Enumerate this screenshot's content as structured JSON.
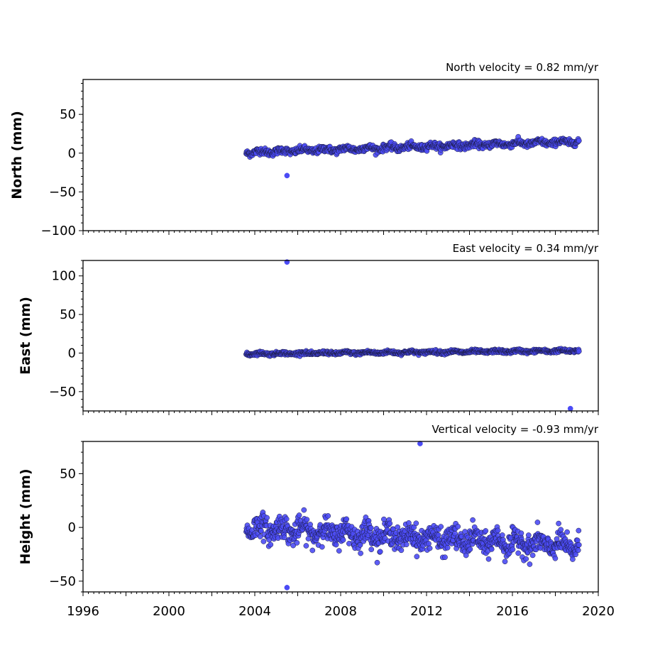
{
  "chart_data": [
    {
      "type": "scatter",
      "title": "North velocity = 0.82 mm/yr",
      "ylabel": "North (mm)",
      "xlim": [
        1996,
        2020
      ],
      "ylim": [
        -100,
        95
      ],
      "yticks": [
        "50",
        "0",
        "−50",
        "−100"
      ],
      "ytick_values": [
        50,
        0,
        -50,
        -100
      ],
      "series": [
        {
          "color": "#4b4bf5",
          "edge_color": "#1a1a40",
          "start_year": 2003.6,
          "end_year": 2019.1,
          "start_mean": 1,
          "end_mean": 15,
          "noise": 3,
          "outliers": [
            [
              2005.5,
              -29
            ]
          ]
        }
      ]
    },
    {
      "type": "scatter",
      "title": "East velocity = 0.34 mm/yr",
      "ylabel": "East (mm)",
      "xlim": [
        1996,
        2020
      ],
      "ylim": [
        -75,
        120
      ],
      "yticks": [
        "100",
        "50",
        "0",
        "−50"
      ],
      "ytick_values": [
        100,
        50,
        0,
        -50
      ],
      "series": [
        {
          "color": "#4b4bf5",
          "edge_color": "#1a1a40",
          "start_year": 2003.6,
          "end_year": 2019.1,
          "start_mean": -1,
          "end_mean": 3,
          "noise": 1.5,
          "outliers": [
            [
              2005.5,
              118
            ],
            [
              2018.7,
              -72
            ]
          ]
        }
      ]
    },
    {
      "type": "scatter",
      "title": "Vertical velocity = -0.93 mm/yr",
      "ylabel": "Height (mm)",
      "xlabel_ticks": [
        "1996",
        "2000",
        "2004",
        "2008",
        "2012",
        "2016",
        "2020"
      ],
      "xtick_values": [
        1996,
        2000,
        2004,
        2008,
        2012,
        2016,
        2020
      ],
      "xlim": [
        1996,
        2020
      ],
      "ylim": [
        -60,
        80
      ],
      "yticks": [
        "50",
        "0",
        "−50"
      ],
      "ytick_values": [
        50,
        0,
        -50
      ],
      "series": [
        {
          "color": "#4b4bf5",
          "edge_color": "#1a1a40",
          "start_year": 2003.6,
          "end_year": 2019.1,
          "start_mean": 0,
          "end_mean": -18,
          "noise": 8,
          "outliers": [
            [
              2005.5,
              -56
            ],
            [
              2011.7,
              78
            ]
          ]
        }
      ]
    }
  ]
}
